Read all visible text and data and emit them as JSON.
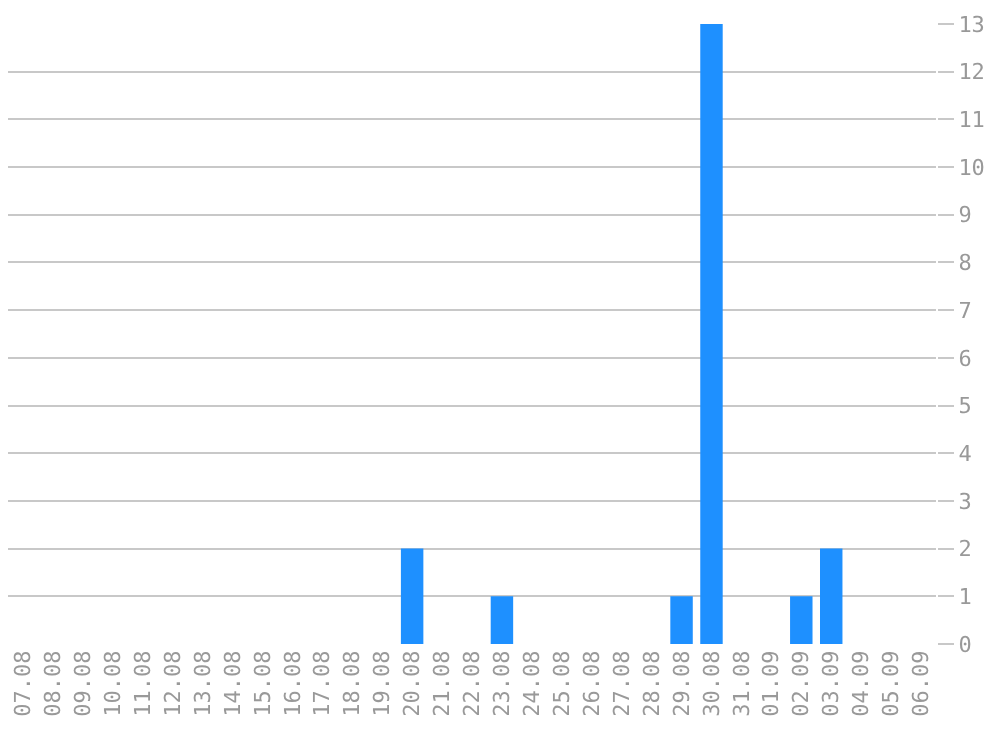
{
  "chart_data": {
    "type": "bar",
    "categories": [
      "07.08",
      "08.08",
      "09.08",
      "10.08",
      "11.08",
      "12.08",
      "13.08",
      "14.08",
      "15.08",
      "16.08",
      "17.08",
      "18.08",
      "19.08",
      "20.08",
      "21.08",
      "22.08",
      "23.08",
      "24.08",
      "25.08",
      "26.08",
      "27.08",
      "28.08",
      "29.08",
      "30.08",
      "31.08",
      "01.09",
      "02.09",
      "03.09",
      "04.09",
      "05.09",
      "06.09"
    ],
    "values": [
      0,
      0,
      0,
      0,
      0,
      0,
      0,
      0,
      0,
      0,
      0,
      0,
      0,
      2,
      0,
      0,
      1,
      0,
      0,
      0,
      0,
      0,
      1,
      13,
      0,
      0,
      1,
      2,
      0,
      0,
      0
    ],
    "color": "#1e90ff",
    "ylim": [
      0,
      13
    ],
    "yticks": [
      0,
      1,
      2,
      3,
      4,
      5,
      6,
      7,
      8,
      9,
      10,
      11,
      12,
      13
    ],
    "grid": "y"
  }
}
